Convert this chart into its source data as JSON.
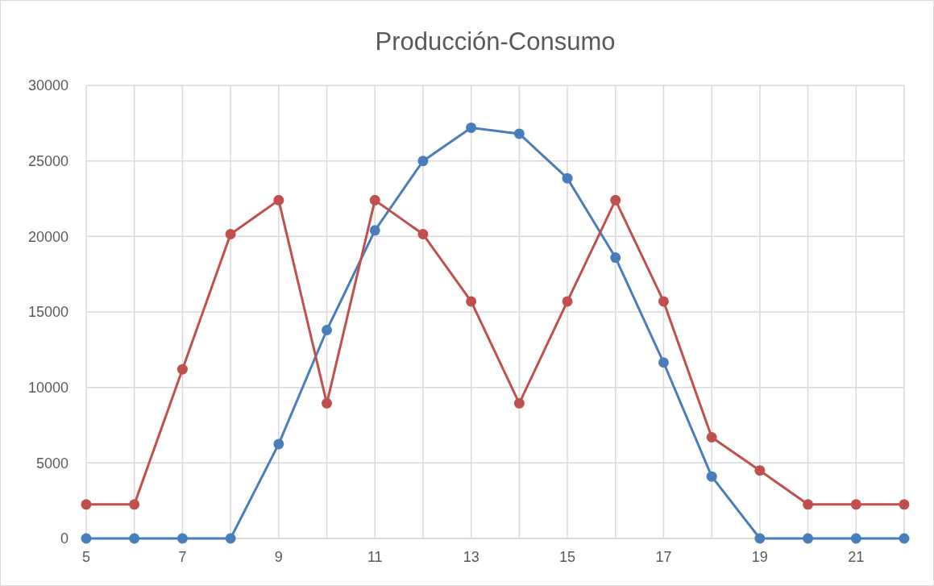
{
  "chart_data": {
    "type": "line",
    "title": "Producción-Consumo",
    "x": [
      5,
      6,
      7,
      8,
      9,
      10,
      11,
      12,
      13,
      14,
      15,
      16,
      17,
      18,
      19,
      20,
      21,
      22
    ],
    "series": [
      {
        "color": "#4a7ebb",
        "values": [
          0,
          0,
          0,
          0,
          6250,
          13800,
          20400,
          25000,
          27200,
          26800,
          23850,
          18600,
          11650,
          4100,
          0,
          0,
          0,
          0
        ]
      },
      {
        "color": "#c0504d",
        "values": [
          2250,
          2250,
          11200,
          20150,
          22400,
          8950,
          22400,
          20150,
          15700,
          8950,
          15700,
          22400,
          15700,
          6700,
          4500,
          2250,
          2250,
          2250
        ]
      }
    ],
    "xlim": [
      5,
      22
    ],
    "xticks": [
      5,
      {
        "value": 6,
        "label": null
      },
      7,
      {
        "value": 8,
        "label": null
      },
      9,
      {
        "value": 10,
        "label": null
      },
      11,
      {
        "value": 12,
        "label": null
      },
      13,
      {
        "value": 14,
        "label": null
      },
      15,
      {
        "value": 16,
        "label": null
      },
      17,
      {
        "value": 18,
        "label": null
      },
      19,
      {
        "value": 20,
        "label": null
      },
      21,
      {
        "value": 22,
        "label": null
      }
    ],
    "ylim": [
      0,
      30000
    ],
    "yticks": [
      0,
      5000,
      10000,
      15000,
      20000,
      25000,
      30000
    ],
    "grid": true,
    "marker": "circle",
    "line_style": "solid"
  }
}
